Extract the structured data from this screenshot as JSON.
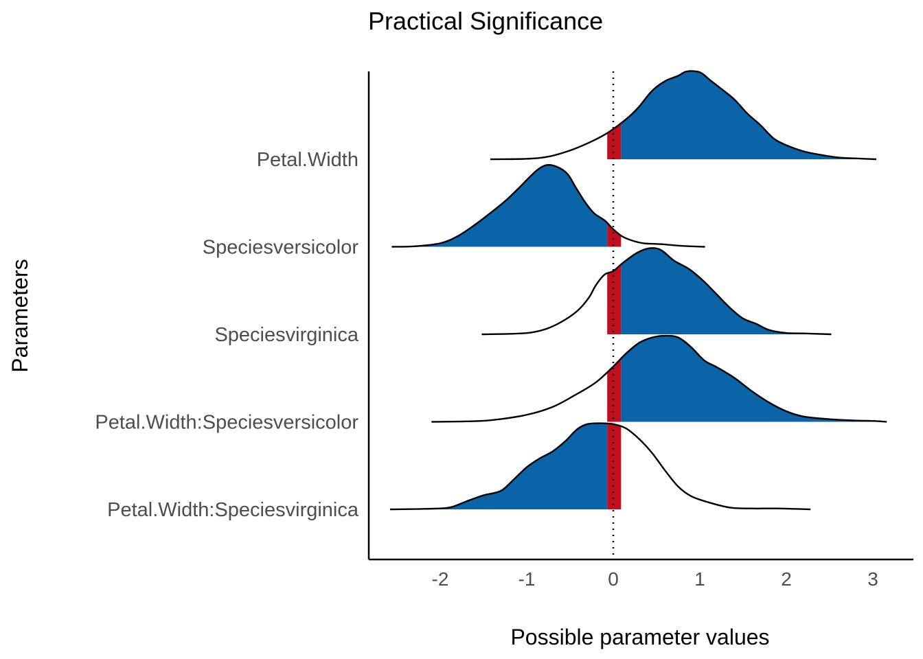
{
  "chart_data": {
    "type": "area",
    "subtype": "ridgeline-density",
    "title": "Practical Significance",
    "xlabel": "Possible parameter values",
    "ylabel": "Parameters",
    "xlim": [
      -2.8,
      3.45
    ],
    "xticks": [
      -2,
      -1,
      0,
      1,
      2,
      3
    ],
    "xtick_labels": [
      "-2",
      "-1",
      "0",
      "1",
      "2",
      "3"
    ],
    "reference_line": 0,
    "rope": [
      -0.07,
      0.09
    ],
    "grid": false,
    "legend": "none",
    "colors": {
      "significant": "#0B63A8",
      "rope": "#C0101E",
      "outline": "#000000"
    },
    "series": [
      {
        "name": "Petal.Width",
        "density": [
          [
            -1.42,
            0.0
          ],
          [
            -1.0,
            0.005
          ],
          [
            -0.75,
            0.03
          ],
          [
            -0.5,
            0.1
          ],
          [
            -0.3,
            0.18
          ],
          [
            -0.1,
            0.28
          ],
          [
            0.05,
            0.38
          ],
          [
            0.2,
            0.5
          ],
          [
            0.3,
            0.6
          ],
          [
            0.45,
            0.78
          ],
          [
            0.6,
            0.89
          ],
          [
            0.75,
            0.95
          ],
          [
            0.85,
            1.0
          ],
          [
            1.0,
            0.99
          ],
          [
            1.12,
            0.9
          ],
          [
            1.25,
            0.8
          ],
          [
            1.4,
            0.68
          ],
          [
            1.55,
            0.52
          ],
          [
            1.7,
            0.39
          ],
          [
            1.85,
            0.24
          ],
          [
            2.0,
            0.16
          ],
          [
            2.2,
            0.09
          ],
          [
            2.4,
            0.05
          ],
          [
            2.6,
            0.02
          ],
          [
            2.8,
            0.01
          ],
          [
            3.04,
            0.0
          ]
        ]
      },
      {
        "name": "Speciesversicolor",
        "density": [
          [
            -2.56,
            0.0
          ],
          [
            -2.3,
            0.005
          ],
          [
            -2.0,
            0.04
          ],
          [
            -1.8,
            0.12
          ],
          [
            -1.6,
            0.25
          ],
          [
            -1.4,
            0.4
          ],
          [
            -1.25,
            0.52
          ],
          [
            -1.1,
            0.66
          ],
          [
            -0.97,
            0.79
          ],
          [
            -0.87,
            0.88
          ],
          [
            -0.77,
            0.93
          ],
          [
            -0.65,
            0.91
          ],
          [
            -0.53,
            0.83
          ],
          [
            -0.43,
            0.67
          ],
          [
            -0.32,
            0.5
          ],
          [
            -0.22,
            0.38
          ],
          [
            -0.1,
            0.3
          ],
          [
            0.0,
            0.2
          ],
          [
            0.1,
            0.12
          ],
          [
            0.22,
            0.07
          ],
          [
            0.35,
            0.04
          ],
          [
            0.55,
            0.03
          ],
          [
            0.8,
            0.01
          ],
          [
            1.06,
            0.0
          ]
        ]
      },
      {
        "name": "Speciesvirginica",
        "density": [
          [
            -1.52,
            0.0
          ],
          [
            -1.2,
            0.005
          ],
          [
            -0.95,
            0.02
          ],
          [
            -0.75,
            0.07
          ],
          [
            -0.55,
            0.17
          ],
          [
            -0.4,
            0.28
          ],
          [
            -0.28,
            0.42
          ],
          [
            -0.2,
            0.56
          ],
          [
            -0.1,
            0.68
          ],
          [
            0.0,
            0.72
          ],
          [
            0.12,
            0.82
          ],
          [
            0.28,
            0.93
          ],
          [
            0.42,
            0.98
          ],
          [
            0.55,
            0.96
          ],
          [
            0.7,
            0.84
          ],
          [
            0.88,
            0.74
          ],
          [
            1.05,
            0.6
          ],
          [
            1.2,
            0.45
          ],
          [
            1.35,
            0.3
          ],
          [
            1.5,
            0.18
          ],
          [
            1.65,
            0.12
          ],
          [
            1.8,
            0.05
          ],
          [
            2.0,
            0.015
          ],
          [
            2.2,
            0.01
          ],
          [
            2.52,
            0.0
          ]
        ]
      },
      {
        "name": "Petal.Width:Speciesversicolor",
        "density": [
          [
            -2.1,
            0.0
          ],
          [
            -1.7,
            0.005
          ],
          [
            -1.4,
            0.02
          ],
          [
            -1.0,
            0.08
          ],
          [
            -0.7,
            0.17
          ],
          [
            -0.45,
            0.3
          ],
          [
            -0.2,
            0.45
          ],
          [
            0.0,
            0.63
          ],
          [
            0.15,
            0.78
          ],
          [
            0.3,
            0.9
          ],
          [
            0.45,
            0.96
          ],
          [
            0.6,
            0.98
          ],
          [
            0.75,
            0.96
          ],
          [
            0.9,
            0.85
          ],
          [
            1.05,
            0.7
          ],
          [
            1.2,
            0.62
          ],
          [
            1.4,
            0.5
          ],
          [
            1.6,
            0.35
          ],
          [
            1.8,
            0.22
          ],
          [
            2.0,
            0.12
          ],
          [
            2.2,
            0.06
          ],
          [
            2.5,
            0.03
          ],
          [
            2.8,
            0.015
          ],
          [
            3.0,
            0.01
          ],
          [
            3.16,
            0.0
          ]
        ]
      },
      {
        "name": "Petal.Width:Speciesvirginica",
        "density": [
          [
            -2.58,
            0.0
          ],
          [
            -2.2,
            0.005
          ],
          [
            -1.9,
            0.02
          ],
          [
            -1.7,
            0.09
          ],
          [
            -1.5,
            0.16
          ],
          [
            -1.3,
            0.21
          ],
          [
            -1.15,
            0.34
          ],
          [
            -1.0,
            0.48
          ],
          [
            -0.85,
            0.58
          ],
          [
            -0.7,
            0.66
          ],
          [
            -0.55,
            0.78
          ],
          [
            -0.42,
            0.91
          ],
          [
            -0.3,
            0.97
          ],
          [
            -0.15,
            0.98
          ],
          [
            0.0,
            0.97
          ],
          [
            0.15,
            0.92
          ],
          [
            0.3,
            0.8
          ],
          [
            0.45,
            0.64
          ],
          [
            0.6,
            0.44
          ],
          [
            0.75,
            0.26
          ],
          [
            0.9,
            0.15
          ],
          [
            1.1,
            0.08
          ],
          [
            1.35,
            0.02
          ],
          [
            1.6,
            0.01
          ],
          [
            1.9,
            0.01
          ],
          [
            2.28,
            0.0
          ]
        ]
      }
    ]
  }
}
